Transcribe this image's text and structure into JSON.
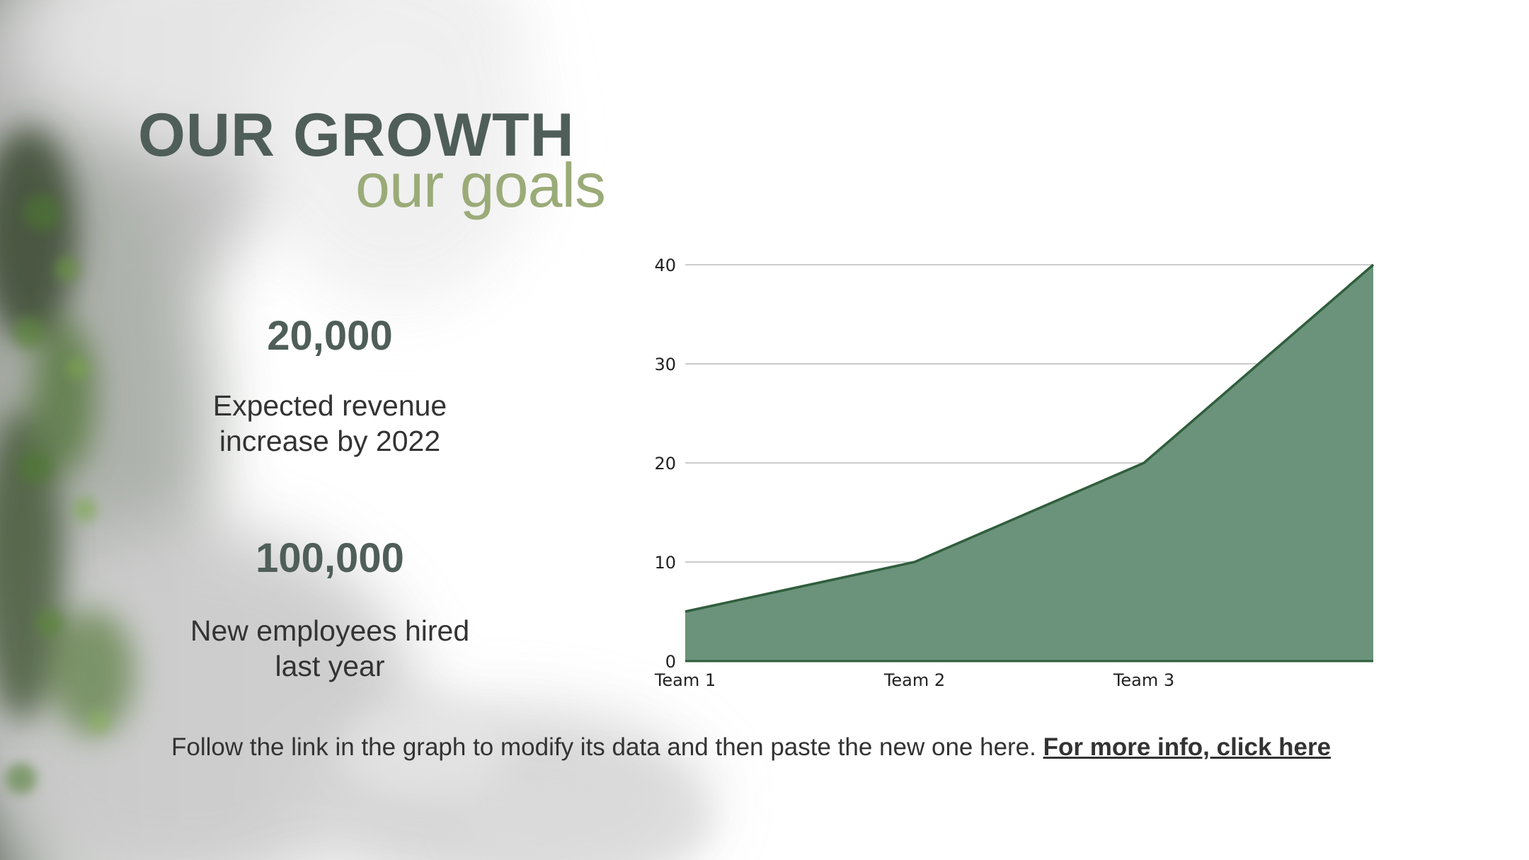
{
  "slide": {
    "title": "OUR GROWTH",
    "subtitle": "our goals",
    "stats": [
      {
        "value": "20,000",
        "line1": "Expected revenue",
        "line2": "increase by 2022"
      },
      {
        "value": "100,000",
        "line1": "New employees hired",
        "line2": "last year"
      }
    ],
    "footer": {
      "text": "Follow the link in the graph to modify its data and then paste the new one here.",
      "link": "For more info, click here"
    }
  },
  "colors": {
    "title": "#4f5e59",
    "subtitle": "#9bab78",
    "area_fill": "#6b927a",
    "area_line": "#2f5e3c",
    "grid": "#cccccc"
  },
  "chart_data": {
    "type": "area",
    "categories": [
      "Team 1",
      "Team 2",
      "Team 3",
      ""
    ],
    "values": [
      5,
      10,
      20,
      40
    ],
    "ylim": [
      0,
      40
    ],
    "yticks": [
      "0",
      "10",
      "20",
      "30",
      "40"
    ],
    "grid": true,
    "legend": "none"
  }
}
